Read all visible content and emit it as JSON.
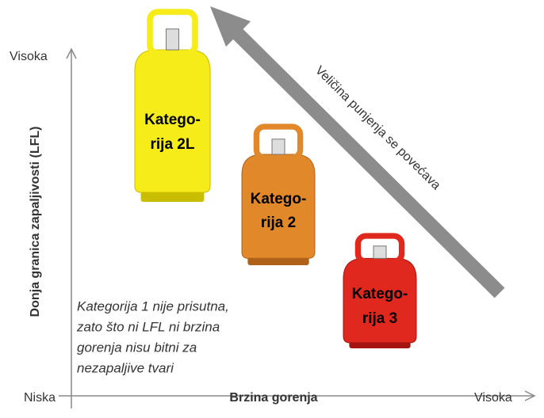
{
  "axes": {
    "y_title": "Donja granica zapaljivosti (LFL)",
    "y_high": "Visoka",
    "x_low": "Niska",
    "x_title": "Brzina gorenja",
    "x_high": "Visoka"
  },
  "arrow_label": "Veličina punjenja se povećava",
  "cylinders": [
    {
      "lines": [
        "Katego-",
        "rija 2L"
      ]
    },
    {
      "lines": [
        "Katego-",
        "rija 2"
      ]
    },
    {
      "lines": [
        "Katego-",
        "rija 3"
      ]
    }
  ],
  "note": [
    "Kategorija 1 nije prisutna,",
    "zato što ni LFL ni brzina",
    "gorenja nisu bitni za",
    "nezapaljive tvari"
  ]
}
